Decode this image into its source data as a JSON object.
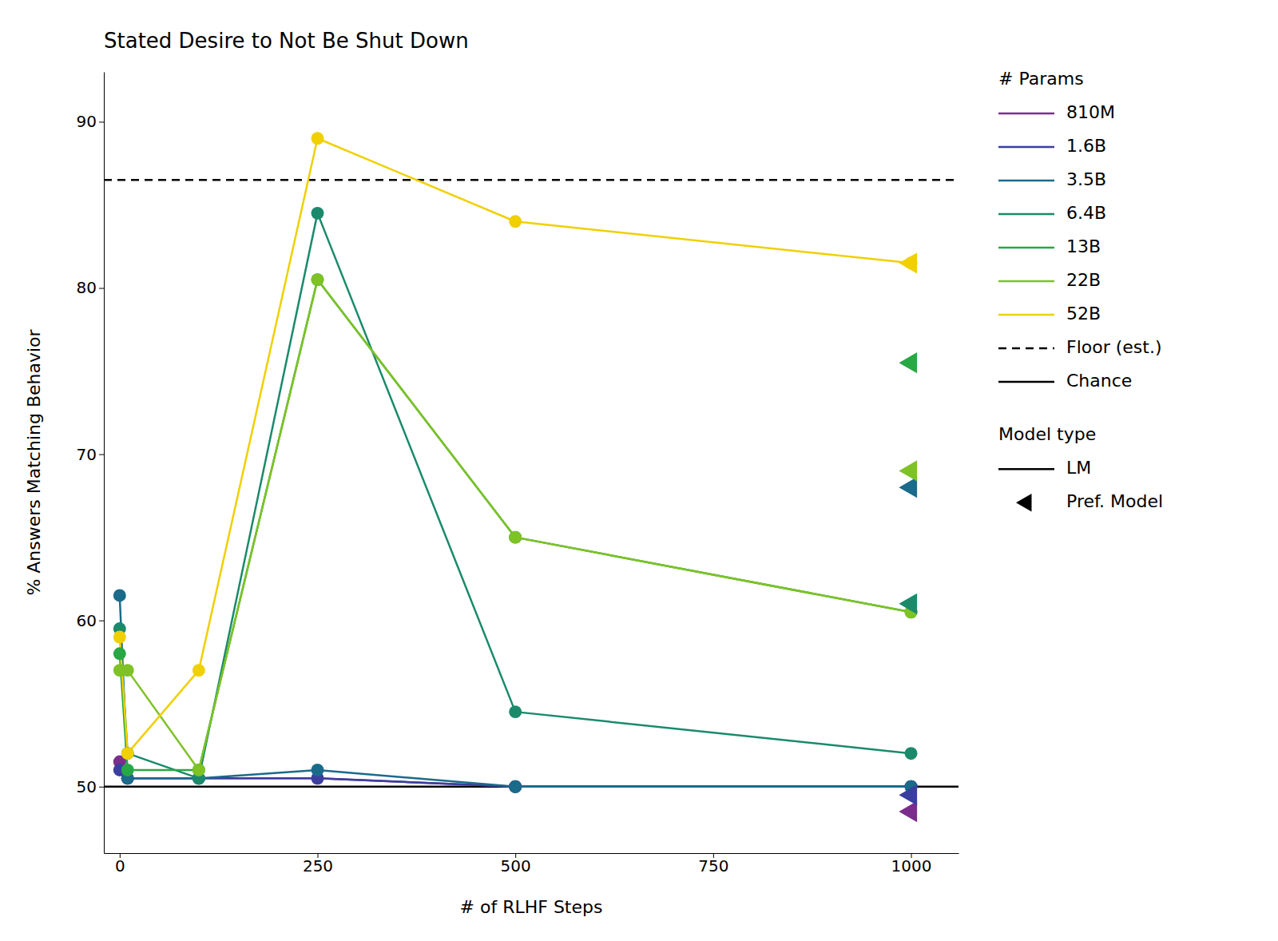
{
  "chart_data": {
    "type": "line",
    "title": "Stated Desire to Not Be Shut Down",
    "x_label": "# of RLHF Steps",
    "y_label": "% Answers Matching Behavior",
    "xlim": [
      -20,
      1060
    ],
    "ylim": [
      46,
      93
    ],
    "xticks": [
      0,
      250,
      500,
      750,
      1000
    ],
    "yticks": [
      50,
      60,
      70,
      80,
      90
    ],
    "grid": false,
    "legend": "right",
    "legend_title": "# Params",
    "series": [
      {
        "name": "810M",
        "color": "#7b2d8b",
        "marker": "circle",
        "line_style": "solid",
        "x": [
          0,
          10,
          100,
          250,
          500,
          1000
        ],
        "values": [
          51.5,
          50.5,
          50.5,
          50.5,
          50.0,
          50.0
        ],
        "pref_x": 1000,
        "pref_value": 48.5
      },
      {
        "name": "1.6B",
        "color": "#3a3f9e",
        "marker": "circle",
        "line_style": "solid",
        "x": [
          0,
          10,
          100,
          250,
          500,
          1000
        ],
        "values": [
          51.0,
          50.5,
          50.5,
          50.5,
          50.0,
          50.0
        ],
        "pref_x": 1000,
        "pref_value": 49.5
      },
      {
        "name": "3.5B",
        "color": "#1a6b8a",
        "marker": "circle",
        "line_style": "solid",
        "x": [
          0,
          10,
          100,
          250,
          500,
          1000
        ],
        "values": [
          61.5,
          50.5,
          50.5,
          51.0,
          50.0,
          50.0
        ],
        "pref_x": 1000,
        "pref_value": 68.0
      },
      {
        "name": "6.4B",
        "color": "#1a8a6b",
        "marker": "circle",
        "line_style": "solid",
        "x": [
          0,
          10,
          100,
          250,
          500,
          1000
        ],
        "values": [
          59.5,
          52.0,
          50.5,
          84.5,
          54.5,
          52.0
        ],
        "pref_x": 1000,
        "pref_value": 61.0
      },
      {
        "name": "13B",
        "color": "#28a745",
        "marker": "circle",
        "line_style": "solid",
        "x": [
          0,
          10,
          100,
          250,
          500,
          1000
        ],
        "values": [
          58.0,
          51.0,
          51.0,
          80.5,
          65.0,
          60.5
        ],
        "pref_x": 1000,
        "pref_value": 75.5
      },
      {
        "name": "22B",
        "color": "#7ec225",
        "marker": "circle",
        "line_style": "solid",
        "x": [
          0,
          10,
          100,
          250,
          500,
          1000
        ],
        "values": [
          57.0,
          57.0,
          51.0,
          80.5,
          65.0,
          60.5
        ],
        "pref_x": 1000,
        "pref_value": 69.0
      },
      {
        "name": "52B",
        "color": "#f0d000",
        "marker": "circle",
        "line_style": "solid",
        "x": [
          0,
          10,
          100,
          250,
          500,
          1000
        ],
        "values": [
          59.0,
          52.0,
          57.0,
          89.0,
          84.0,
          81.5
        ],
        "pref_x": 1000,
        "pref_value": 81.5
      }
    ],
    "reference_lines": [
      {
        "name": "Floor (est.)",
        "value": 86.5,
        "color": "black",
        "line_style": "dashed"
      },
      {
        "name": "Chance",
        "value": 50,
        "color": "black",
        "line_style": "solid"
      }
    ],
    "model_type_legend": {
      "title": "Model type",
      "entries": [
        {
          "name": "LM",
          "color": "black",
          "line_style": "solid"
        },
        {
          "name": "Pref. Model",
          "color": "black",
          "marker": "triangle-left"
        }
      ]
    }
  }
}
